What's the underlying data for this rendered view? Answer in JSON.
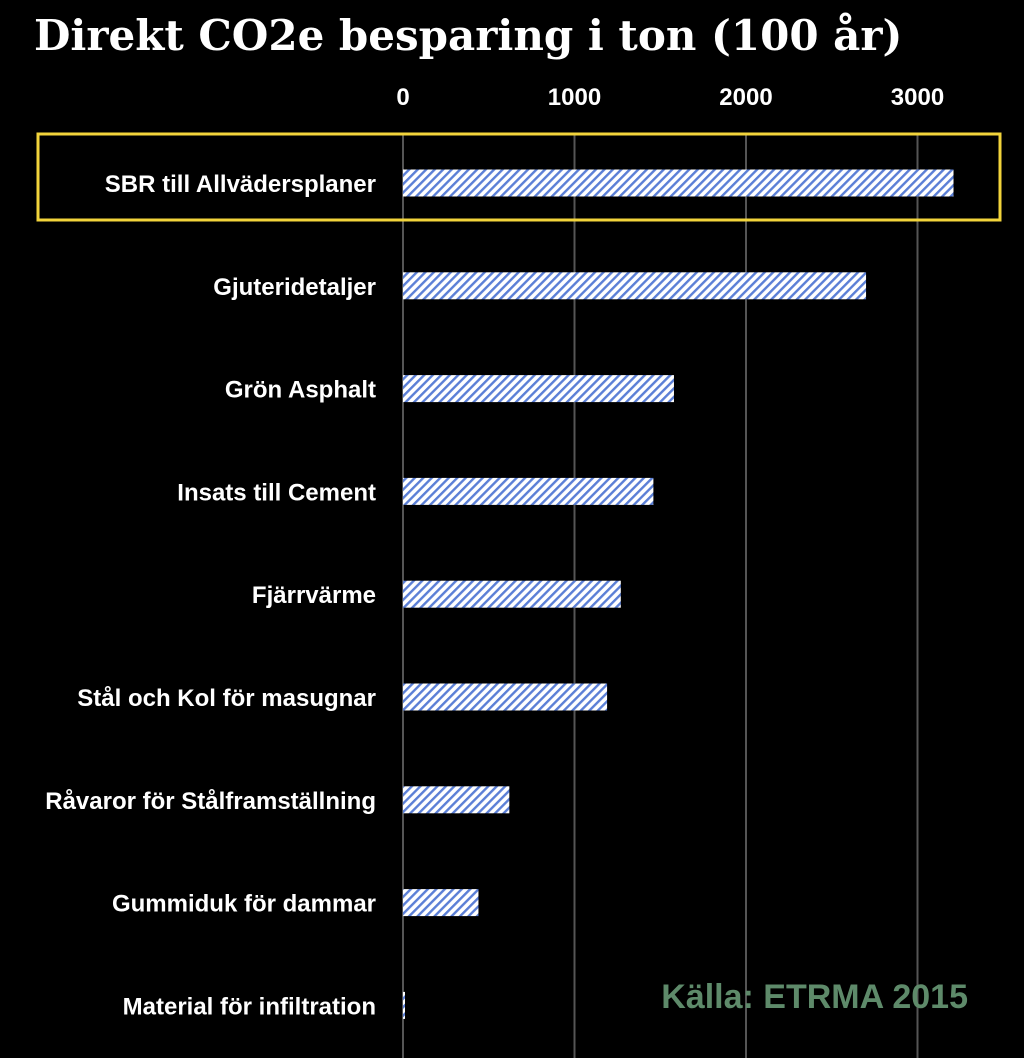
{
  "colors": {
    "background": "#000000",
    "text": "#ffffff",
    "gridline": "#555555",
    "bar_fill": "#ffffff",
    "bar_hatch": "#5b7fd6",
    "highlight_border": "#f2d43b",
    "source_text": "#5e8a6a"
  },
  "chart_data": {
    "type": "bar",
    "orientation": "horizontal",
    "title": "Direkt CO2e besparing i ton (100 år)",
    "xlim": [
      0,
      3200
    ],
    "xticks": [
      0,
      1000,
      2000,
      3000
    ],
    "tick_labels": [
      "0",
      "1000",
      "2000",
      "3000"
    ],
    "axis_position": "top",
    "grid": true,
    "categories": [
      "SBR till Allvädersplaner",
      "Gjuteridetaljer",
      "Grön Asphalt",
      "Insats till Cement",
      "Fjärrvärme",
      "Stål och Kol för masugnar",
      "Råvaror för Stålframställning",
      "Gummiduk för dammar",
      "Material för infiltration"
    ],
    "values": [
      3210,
      2700,
      1580,
      1460,
      1270,
      1190,
      620,
      440,
      10
    ],
    "highlighted_category": "SBR till Allvädersplaner",
    "annotation": "Källa: ETRMA 2015"
  }
}
